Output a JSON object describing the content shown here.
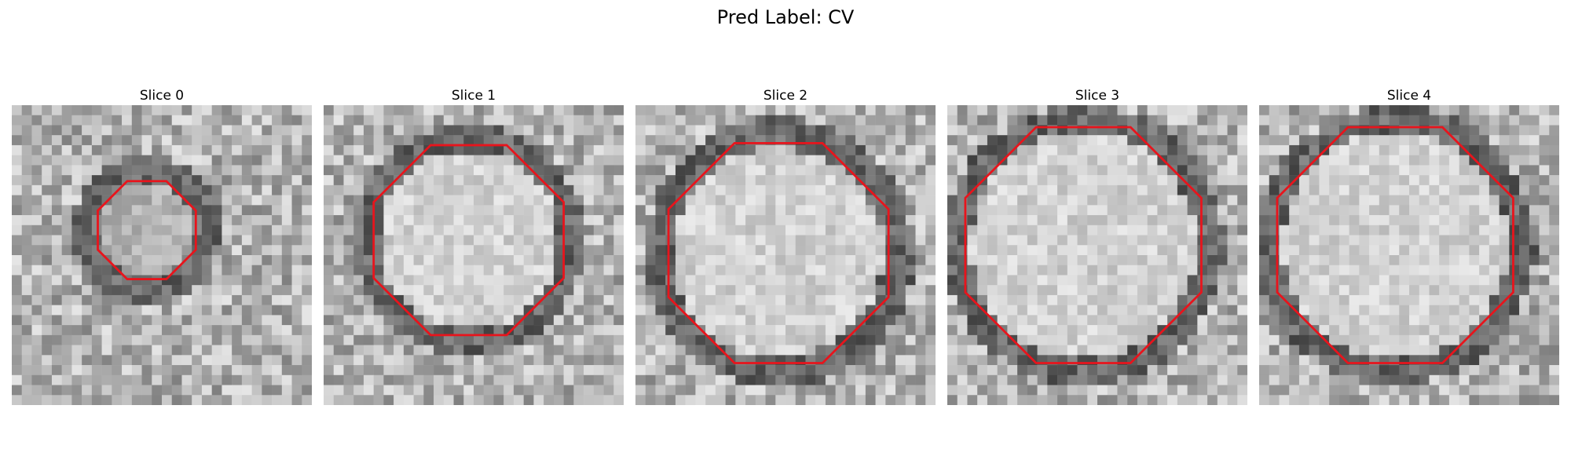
{
  "figure": {
    "title": "Pred Label: CV"
  },
  "panels": [
    {
      "title": "Slice 0",
      "vessel_radius": 0.28,
      "dark_ring": true,
      "blob": "small"
    },
    {
      "title": "Slice 1",
      "vessel_radius": 0.36,
      "dark_ring": true,
      "blob": "bright"
    },
    {
      "title": "Slice 2",
      "vessel_radius": 0.4,
      "dark_ring": true,
      "blob": "noisy"
    },
    {
      "title": "Slice 3",
      "vessel_radius": 0.42,
      "dark_ring": true,
      "blob": "light"
    },
    {
      "title": "Slice 4",
      "vessel_radius": 0.42,
      "dark_ring": true,
      "blob": "light"
    }
  ],
  "contour_color": "#e8141c",
  "colormap": "grayscale"
}
